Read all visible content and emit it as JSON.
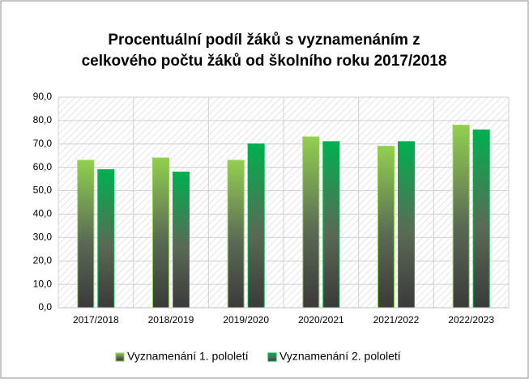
{
  "chart_data": {
    "type": "bar",
    "title": [
      "Procentuální podíl žáků  s vyznamenáním z",
      "celkového počtu žáků od školního roku 2017/2018"
    ],
    "categories": [
      "2017/2018",
      "2018/2019",
      "2019/2020",
      "2020/2021",
      "2021/2022",
      "2022/2023"
    ],
    "series": [
      {
        "name": "Vyznamenání 1. pololetí",
        "color": "#92d050",
        "values": [
          63,
          64,
          63,
          73,
          69,
          78
        ]
      },
      {
        "name": "Vyznamenání 2. pololetí",
        "color": "#00b050",
        "values": [
          59,
          58,
          70,
          71,
          71,
          76
        ]
      }
    ],
    "ylim": [
      0,
      90
    ],
    "yticks": [
      {
        "value": 0,
        "label": "0,0"
      },
      {
        "value": 10,
        "label": "10,0"
      },
      {
        "value": 20,
        "label": "20,0"
      },
      {
        "value": 30,
        "label": "30,0"
      },
      {
        "value": 40,
        "label": "40,0"
      },
      {
        "value": 50,
        "label": "50,0"
      },
      {
        "value": 60,
        "label": "60,0"
      },
      {
        "value": 70,
        "label": "70,0"
      },
      {
        "value": 80,
        "label": "80,0"
      },
      {
        "value": 90,
        "label": "90,0"
      }
    ],
    "grid": true,
    "legend": "bottom"
  }
}
